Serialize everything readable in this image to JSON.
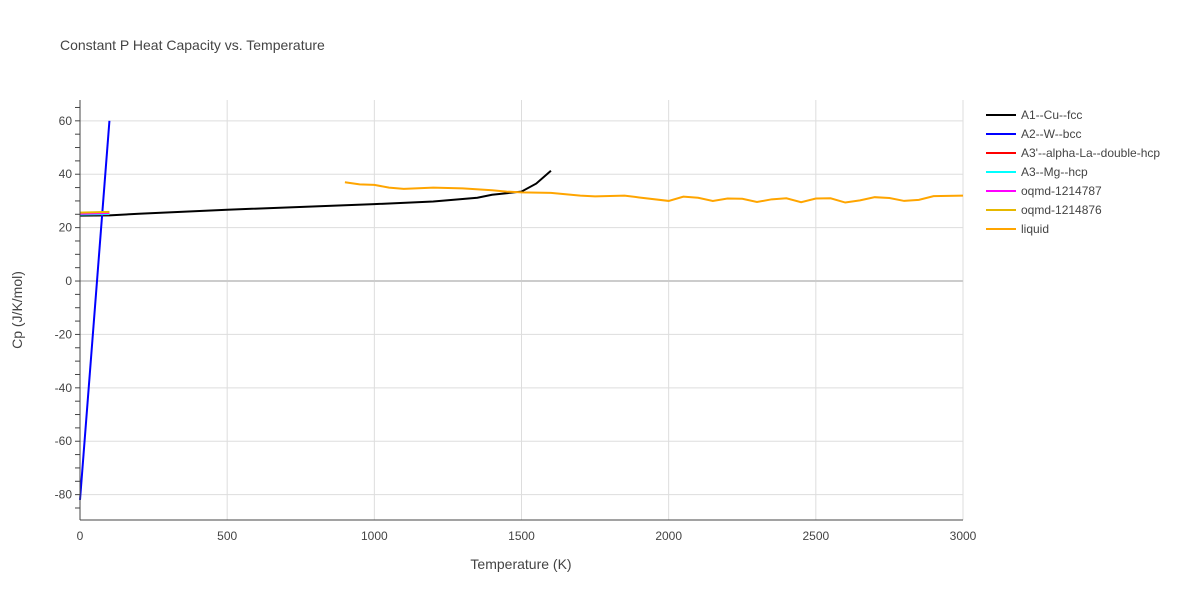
{
  "chart_data": {
    "type": "line",
    "title": "Constant P Heat Capacity vs. Temperature",
    "xlabel": "Temperature (K)",
    "ylabel": "Cp (J/K/mol)",
    "xlim": [
      0,
      3000
    ],
    "ylim": [
      -89.5,
      67.8
    ],
    "xticks": [
      0,
      500,
      1000,
      1500,
      2000,
      2500,
      3000
    ],
    "yticks": [
      -80,
      -60,
      -40,
      -20,
      0,
      20,
      40,
      60
    ],
    "grid": true,
    "legend_position": "right",
    "series": [
      {
        "name": "A1--Cu--fcc",
        "color": "#000000",
        "x": [
          0,
          100,
          200,
          500,
          1000,
          1200,
          1350,
          1400,
          1500,
          1550,
          1600
        ],
        "y": [
          24.5,
          24.6,
          25.2,
          26.7,
          28.8,
          29.8,
          31.2,
          32.3,
          33.5,
          36.5,
          41.3
        ]
      },
      {
        "name": "A2--W--bcc",
        "color": "#0000ff",
        "x": [
          0,
          100
        ],
        "y": [
          -82,
          60
        ]
      },
      {
        "name": "A3'--alpha-La--double-hcp",
        "color": "#ff0000",
        "x": [
          0,
          100
        ],
        "y": [
          25.0,
          25.0
        ]
      },
      {
        "name": "A3--Mg--hcp",
        "color": "#00ffff",
        "x": [
          0,
          100
        ],
        "y": [
          24.9,
          25.1
        ]
      },
      {
        "name": "oqmd-1214787",
        "color": "#ff00ff",
        "x": [
          0,
          100
        ],
        "y": [
          25.2,
          25.5
        ]
      },
      {
        "name": "oqmd-1214876",
        "color": "#e6b800",
        "x": [
          0,
          100
        ],
        "y": [
          25.6,
          25.9
        ]
      },
      {
        "name": "liquid",
        "color": "#ffa500",
        "x": [
          900,
          950,
          1000,
          1050,
          1100,
          1200,
          1300,
          1400,
          1450,
          1500,
          1600,
          1650,
          1700,
          1750,
          1850,
          1900,
          2000,
          2050,
          2100,
          2150,
          2200,
          2250,
          2300,
          2350,
          2400,
          2450,
          2500,
          2550,
          2600,
          2650,
          2700,
          2750,
          2800,
          2850,
          2900,
          3000
        ],
        "y": [
          37,
          36.2,
          36,
          35,
          34.5,
          35,
          34.7,
          34,
          33.5,
          33.2,
          33,
          32.5,
          32,
          31.7,
          32,
          31.3,
          30,
          31.6,
          31.2,
          30,
          30.9,
          30.8,
          29.6,
          30.6,
          31,
          29.5,
          30.9,
          31,
          29.4,
          30.2,
          31.4,
          31.1,
          30,
          30.4,
          31.8,
          32
        ]
      }
    ]
  }
}
